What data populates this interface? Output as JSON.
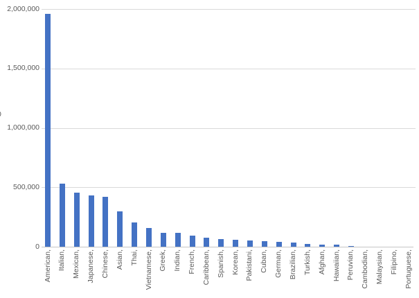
{
  "chart_data": {
    "type": "bar",
    "title": "",
    "xlabel": "",
    "ylabel": "",
    "legend": false,
    "grid": true,
    "ylim": [
      0,
      2000000
    ],
    "y_ticks": [
      {
        "label": "0",
        "value": 0
      },
      {
        "label": "500,000",
        "value": 500000
      },
      {
        "label": "1,000,000",
        "value": 1000000
      },
      {
        "label": "1,500,000",
        "value": 1500000
      },
      {
        "label": "2,000,000",
        "value": 2000000
      }
    ],
    "categories": [
      "American,",
      "Italian,",
      "Mexican,",
      "Japanese,",
      "Chinese,",
      "Asian,",
      "Thai,",
      "Vietnamese,",
      "Greek,",
      "Indian,",
      "French,",
      "Caribbean,",
      "Spanish,",
      "Korean,",
      "Pakistani,",
      "Cuban,",
      "German,",
      "Brazilian,",
      "Turkish,",
      "Afghan,",
      "Hawaiian,",
      "Peruvian,",
      "Cambodian,",
      "Malaysian,",
      "Filipino,",
      "Portuguese,"
    ],
    "values": [
      1965000,
      535000,
      455000,
      435000,
      425000,
      300000,
      205000,
      160000,
      122000,
      117000,
      95000,
      80000,
      68000,
      60000,
      57000,
      48000,
      41000,
      35000,
      28000,
      22000,
      19000,
      8000,
      3000,
      2500,
      2000,
      1500
    ],
    "series_color": "#4472C4",
    "gridline_color": "#D9D9D9",
    "axis_text_color": "#595959",
    "clipped_axis_fragment": "0"
  }
}
